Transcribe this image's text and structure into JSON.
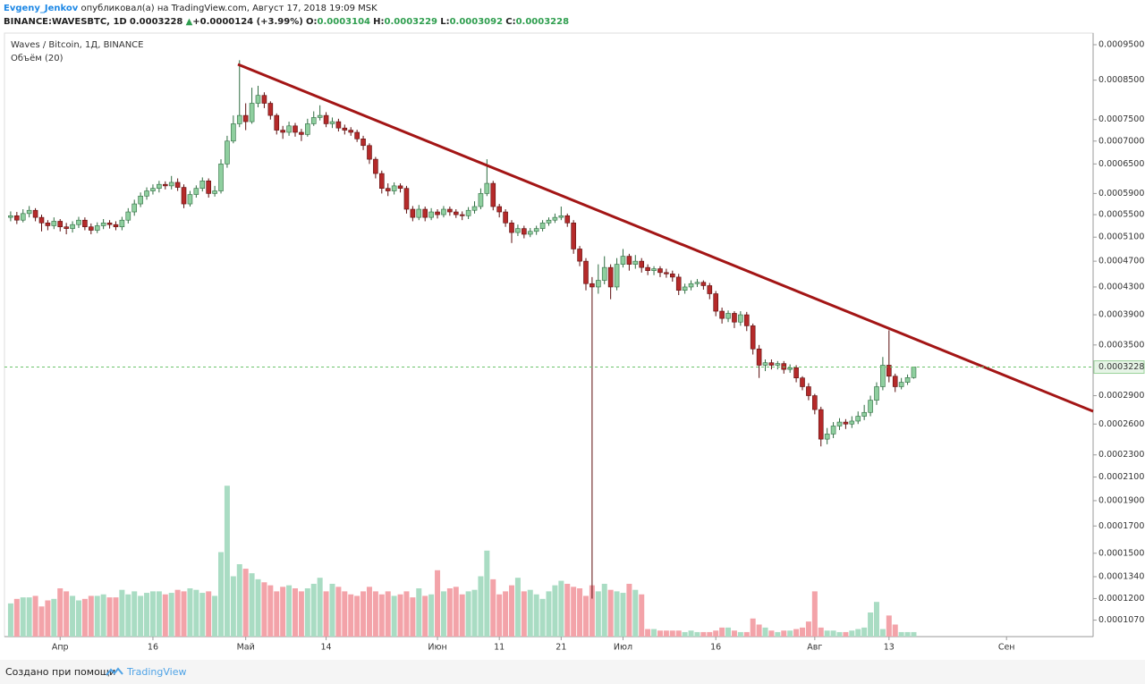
{
  "header": {
    "author": "Evgeny_Jenkov",
    "published": "опубликовал(а) на TradingView.com, Август 17, 2018 19:09 MSK",
    "symbol": "BINANCE:WAVESBTC, 1D",
    "change": "+0.0000124 (+3.99%)",
    "o_label": "O:",
    "h_label": "H:",
    "l_label": "L:",
    "c_label": "C:"
  },
  "footer": {
    "text": "Создано при помощи",
    "brand": "TradingView"
  },
  "chart_data": {
    "type": "candlestick",
    "title": "Waves / Bitcoin, 1Д, BINANCE",
    "volume_label": "Объём (20)",
    "log_scale": true,
    "grid": false,
    "up_color": "#8fcf9f",
    "down_color": "#b52a2a",
    "volume_up_color": "#a9dcc3",
    "volume_down_color": "#f3a3a9",
    "xlim": [
      "2018-03-23",
      "2018-09-15"
    ],
    "xticks": [
      {
        "value": "2018-04-01",
        "label": "Апр"
      },
      {
        "value": "2018-04-16",
        "label": "16"
      },
      {
        "value": "2018-05-01",
        "label": "Май"
      },
      {
        "value": "2018-05-14",
        "label": "14"
      },
      {
        "value": "2018-06-01",
        "label": "Июн"
      },
      {
        "value": "2018-06-11",
        "label": "11"
      },
      {
        "value": "2018-06-21",
        "label": "21"
      },
      {
        "value": "2018-07-01",
        "label": "Июл"
      },
      {
        "value": "2018-07-16",
        "label": "16"
      },
      {
        "value": "2018-08-01",
        "label": "Авг"
      },
      {
        "value": "2018-08-13",
        "label": "13"
      },
      {
        "value": "2018-09-01",
        "label": "Сен"
      }
    ],
    "ylim": [
      9.76e-05,
      0.000985
    ],
    "yticks": [
      {
        "value": 0.00095,
        "label": "0.0009500"
      },
      {
        "value": 0.00085,
        "label": "0.0008500"
      },
      {
        "value": 0.00075,
        "label": "0.0007500"
      },
      {
        "value": 0.0007,
        "label": "0.0007000"
      },
      {
        "value": 0.00065,
        "label": "0.0006500"
      },
      {
        "value": 0.00059,
        "label": "0.0005900"
      },
      {
        "value": 0.00055,
        "label": "0.0005500"
      },
      {
        "value": 0.00051,
        "label": "0.0005100"
      },
      {
        "value": 0.00047,
        "label": "0.0004700"
      },
      {
        "value": 0.00043,
        "label": "0.0004300"
      },
      {
        "value": 0.00039,
        "label": "0.0003900"
      },
      {
        "value": 0.00035,
        "label": "0.0003500"
      },
      {
        "value": 0.00029,
        "label": "0.0002900"
      },
      {
        "value": 0.00026,
        "label": "0.0002600"
      },
      {
        "value": 0.00023,
        "label": "0.0002300"
      },
      {
        "value": 0.00021,
        "label": "0.0002100"
      },
      {
        "value": 0.00019,
        "label": "0.0001900"
      },
      {
        "value": 0.00017,
        "label": "0.0001700"
      },
      {
        "value": 0.00015,
        "label": "0.0001500"
      },
      {
        "value": 0.000134,
        "label": "0.0001340"
      },
      {
        "value": 0.00012,
        "label": "0.0001200"
      },
      {
        "value": 0.000107,
        "label": "0.0001070"
      }
    ],
    "y2lim": [
      0,
      400
    ],
    "x": [
      "2018-03-24",
      "2018-03-25",
      "2018-03-26",
      "2018-03-27",
      "2018-03-28",
      "2018-03-29",
      "2018-03-30",
      "2018-03-31",
      "2018-04-01",
      "2018-04-02",
      "2018-04-03",
      "2018-04-04",
      "2018-04-05",
      "2018-04-06",
      "2018-04-07",
      "2018-04-08",
      "2018-04-09",
      "2018-04-10",
      "2018-04-11",
      "2018-04-12",
      "2018-04-13",
      "2018-04-14",
      "2018-04-15",
      "2018-04-16",
      "2018-04-17",
      "2018-04-18",
      "2018-04-19",
      "2018-04-20",
      "2018-04-21",
      "2018-04-22",
      "2018-04-23",
      "2018-04-24",
      "2018-04-25",
      "2018-04-26",
      "2018-04-27",
      "2018-04-28",
      "2018-04-29",
      "2018-04-30",
      "2018-05-01",
      "2018-05-02",
      "2018-05-03",
      "2018-05-04",
      "2018-05-05",
      "2018-05-06",
      "2018-05-07",
      "2018-05-08",
      "2018-05-09",
      "2018-05-10",
      "2018-05-11",
      "2018-05-12",
      "2018-05-13",
      "2018-05-14",
      "2018-05-15",
      "2018-05-16",
      "2018-05-17",
      "2018-05-18",
      "2018-05-19",
      "2018-05-20",
      "2018-05-21",
      "2018-05-22",
      "2018-05-23",
      "2018-05-24",
      "2018-05-25",
      "2018-05-26",
      "2018-05-27",
      "2018-05-28",
      "2018-05-29",
      "2018-05-30",
      "2018-05-31",
      "2018-06-01",
      "2018-06-02",
      "2018-06-03",
      "2018-06-04",
      "2018-06-05",
      "2018-06-06",
      "2018-06-07",
      "2018-06-08",
      "2018-06-09",
      "2018-06-10",
      "2018-06-11",
      "2018-06-12",
      "2018-06-13",
      "2018-06-14",
      "2018-06-15",
      "2018-06-16",
      "2018-06-17",
      "2018-06-18",
      "2018-06-19",
      "2018-06-20",
      "2018-06-21",
      "2018-06-22",
      "2018-06-23",
      "2018-06-24",
      "2018-06-25",
      "2018-06-26",
      "2018-06-27",
      "2018-06-28",
      "2018-06-29",
      "2018-06-30",
      "2018-07-01",
      "2018-07-02",
      "2018-07-03",
      "2018-07-04",
      "2018-07-05",
      "2018-07-06",
      "2018-07-07",
      "2018-07-08",
      "2018-07-09",
      "2018-07-10",
      "2018-07-11",
      "2018-07-12",
      "2018-07-13",
      "2018-07-14",
      "2018-07-15",
      "2018-07-16",
      "2018-07-17",
      "2018-07-18",
      "2018-07-19",
      "2018-07-20",
      "2018-07-21",
      "2018-07-22",
      "2018-07-23",
      "2018-07-24",
      "2018-07-25",
      "2018-07-26",
      "2018-07-27",
      "2018-07-28",
      "2018-07-29",
      "2018-07-30",
      "2018-07-31",
      "2018-08-01",
      "2018-08-02",
      "2018-08-03",
      "2018-08-04",
      "2018-08-05",
      "2018-08-06",
      "2018-08-07",
      "2018-08-08",
      "2018-08-09",
      "2018-08-10",
      "2018-08-11",
      "2018-08-12",
      "2018-08-13",
      "2018-08-14",
      "2018-08-15",
      "2018-08-16",
      "2018-08-17"
    ],
    "open": [
      0.000545,
      0.000548,
      0.00054,
      0.000552,
      0.000558,
      0.000545,
      0.000535,
      0.00053,
      0.000538,
      0.000528,
      0.000525,
      0.000532,
      0.00054,
      0.000528,
      0.000522,
      0.00053,
      0.000535,
      0.000532,
      0.000528,
      0.00054,
      0.000555,
      0.00057,
      0.000585,
      0.000595,
      0.0006,
      0.000608,
      0.000605,
      0.000612,
      0.000602,
      0.00057,
      0.000588,
      0.0006,
      0.000615,
      0.00059,
      0.000595,
      0.00065,
      0.0007,
      0.00074,
      0.00076,
      0.000745,
      0.00079,
      0.00081,
      0.00079,
      0.00076,
      0.000725,
      0.00072,
      0.000735,
      0.00072,
      0.000715,
      0.00074,
      0.000755,
      0.00076,
      0.00074,
      0.000745,
      0.00073,
      0.000725,
      0.00072,
      0.000705,
      0.00069,
      0.00066,
      0.00063,
      0.0006,
      0.000595,
      0.000605,
      0.0006,
      0.00056,
      0.000545,
      0.00056,
      0.000545,
      0.000555,
      0.00055,
      0.00056,
      0.000555,
      0.00055,
      0.000548,
      0.000558,
      0.000565,
      0.00059,
      0.00061,
      0.000565,
      0.000555,
      0.000535,
      0.000518,
      0.000525,
      0.000515,
      0.00052,
      0.000525,
      0.000535,
      0.00054,
      0.000545,
      0.000548,
      0.000535,
      0.00049,
      0.00047,
      0.000435,
      0.00043,
      0.00044,
      0.00046,
      0.00043,
      0.000465,
      0.000478,
      0.000465,
      0.00047,
      0.00046,
      0.000455,
      0.000458,
      0.000452,
      0.00045,
      0.000445,
      0.000425,
      0.00043,
      0.000435,
      0.000437,
      0.000432,
      0.00042,
      0.000395,
      0.000385,
      0.000392,
      0.00038,
      0.00039,
      0.000375,
      0.000345,
      0.000325,
      0.000328,
      0.000325,
      0.000327,
      0.00032,
      0.000322,
      0.00031,
      0.0003,
      0.00029,
      0.000275,
      0.000245,
      0.00025,
      0.000258,
      0.000262,
      0.00026,
      0.000263,
      0.000268,
      0.000272,
      0.000285,
      0.0003,
      0.000325,
      0.000312,
      0.0003,
      0.000305,
      0.0003104
    ],
    "high": [
      0.000556,
      0.000555,
      0.00056,
      0.000566,
      0.000562,
      0.00055,
      0.00054,
      0.000545,
      0.000542,
      0.000535,
      0.000538,
      0.000546,
      0.000545,
      0.000534,
      0.000536,
      0.000542,
      0.00054,
      0.000538,
      0.000546,
      0.000562,
      0.000578,
      0.000592,
      0.000602,
      0.000608,
      0.000615,
      0.000614,
      0.000625,
      0.00062,
      0.000608,
      0.000595,
      0.000606,
      0.000622,
      0.00062,
      0.000605,
      0.00066,
      0.000712,
      0.00076,
      0.000905,
      0.00079,
      0.00083,
      0.000835,
      0.000818,
      0.000795,
      0.000765,
      0.000735,
      0.000745,
      0.000742,
      0.000728,
      0.000752,
      0.00077,
      0.000785,
      0.000768,
      0.000755,
      0.000752,
      0.000738,
      0.000732,
      0.000726,
      0.000712,
      0.000695,
      0.000665,
      0.000636,
      0.00061,
      0.000612,
      0.00061,
      0.000605,
      0.000566,
      0.000568,
      0.000565,
      0.000562,
      0.00056,
      0.000566,
      0.000565,
      0.00056,
      0.000556,
      0.000564,
      0.000575,
      0.0006,
      0.00066,
      0.000615,
      0.00057,
      0.00056,
      0.00054,
      0.000532,
      0.00053,
      0.000526,
      0.00053,
      0.00054,
      0.000545,
      0.000552,
      0.000565,
      0.000552,
      0.00054,
      0.000495,
      0.000475,
      0.000445,
      0.000465,
      0.000478,
      0.000465,
      0.000475,
      0.00049,
      0.000482,
      0.00048,
      0.000475,
      0.000465,
      0.000462,
      0.000462,
      0.000458,
      0.000455,
      0.00045,
      0.000435,
      0.00044,
      0.000442,
      0.00044,
      0.000436,
      0.000424,
      0.0004,
      0.000396,
      0.000395,
      0.000395,
      0.000394,
      0.000378,
      0.00035,
      0.000332,
      0.000332,
      0.00033,
      0.00033,
      0.000326,
      0.000325,
      0.000312,
      0.000304,
      0.000292,
      0.000278,
      0.000256,
      0.000262,
      0.000266,
      0.000265,
      0.000268,
      0.000273,
      0.00028,
      0.00029,
      0.000305,
      0.000335,
      0.000369,
      0.000315,
      0.00031,
      0.000314,
      0.0003229
    ],
    "low": [
      0.000538,
      0.000533,
      0.000536,
      0.000545,
      0.000538,
      0.00052,
      0.000522,
      0.000524,
      0.00052,
      0.000515,
      0.000518,
      0.000526,
      0.000522,
      0.000515,
      0.000517,
      0.000524,
      0.000525,
      0.000522,
      0.000522,
      0.000534,
      0.000548,
      0.000564,
      0.000578,
      0.000588,
      0.000592,
      0.000598,
      0.000598,
      0.000595,
      0.000562,
      0.000565,
      0.000582,
      0.000594,
      0.000582,
      0.000584,
      0.00059,
      0.000642,
      0.000695,
      0.000732,
      0.000725,
      0.00074,
      0.00078,
      0.000778,
      0.00075,
      0.000715,
      0.000705,
      0.000712,
      0.00071,
      0.0007,
      0.00071,
      0.000735,
      0.000748,
      0.000732,
      0.00073,
      0.000722,
      0.000715,
      0.000712,
      0.000698,
      0.00068,
      0.00065,
      0.00062,
      0.00059,
      0.000585,
      0.000588,
      0.000592,
      0.000552,
      0.000538,
      0.00054,
      0.000538,
      0.00054,
      0.000543,
      0.000545,
      0.000548,
      0.000544,
      0.00054,
      0.000542,
      0.000552,
      0.00056,
      0.000585,
      0.000558,
      0.000545,
      0.000528,
      0.0005,
      0.000512,
      0.000508,
      0.00051,
      0.000514,
      0.00052,
      0.00053,
      0.000535,
      0.00054,
      0.000528,
      0.000482,
      0.000462,
      0.000425,
      0.00012,
      0.00042,
      0.000434,
      0.000412,
      0.000425,
      0.00046,
      0.000455,
      0.000458,
      0.000452,
      0.000448,
      0.000448,
      0.000445,
      0.000444,
      0.000438,
      0.000418,
      0.00042,
      0.000425,
      0.00043,
      0.000426,
      0.000412,
      0.000388,
      0.000378,
      0.00038,
      0.000372,
      0.000375,
      0.000368,
      0.000338,
      0.00031,
      0.000318,
      0.00032,
      0.00032,
      0.000315,
      0.000316,
      0.000305,
      0.000296,
      0.000285,
      0.00027,
      0.000238,
      0.00024,
      0.000246,
      0.000254,
      0.000255,
      0.000256,
      0.00026,
      0.000264,
      0.000268,
      0.00028,
      0.000296,
      0.000305,
      0.000294,
      0.000297,
      0.000302,
      0.0003092
    ],
    "close": [
      0.000548,
      0.00054,
      0.000552,
      0.000558,
      0.000545,
      0.000535,
      0.00053,
      0.000538,
      0.000528,
      0.000525,
      0.000532,
      0.00054,
      0.000528,
      0.000522,
      0.00053,
      0.000535,
      0.000532,
      0.000528,
      0.00054,
      0.000555,
      0.00057,
      0.000585,
      0.000595,
      0.0006,
      0.000608,
      0.000605,
      0.000612,
      0.000602,
      0.00057,
      0.000588,
      0.0006,
      0.000615,
      0.00059,
      0.000595,
      0.00065,
      0.0007,
      0.00074,
      0.00076,
      0.000745,
      0.00079,
      0.00081,
      0.00079,
      0.00076,
      0.000725,
      0.00072,
      0.000735,
      0.00072,
      0.000715,
      0.00074,
      0.000755,
      0.00076,
      0.00074,
      0.000745,
      0.00073,
      0.000725,
      0.00072,
      0.000705,
      0.00069,
      0.00066,
      0.00063,
      0.0006,
      0.000595,
      0.000605,
      0.0006,
      0.00056,
      0.000545,
      0.00056,
      0.000545,
      0.000555,
      0.00055,
      0.00056,
      0.000555,
      0.00055,
      0.000548,
      0.000558,
      0.000565,
      0.00059,
      0.00061,
      0.000565,
      0.000555,
      0.000535,
      0.000518,
      0.000525,
      0.000515,
      0.00052,
      0.000525,
      0.000535,
      0.00054,
      0.000545,
      0.000548,
      0.000535,
      0.00049,
      0.00047,
      0.000435,
      0.00043,
      0.00044,
      0.00046,
      0.00043,
      0.000465,
      0.000478,
      0.000465,
      0.00047,
      0.00046,
      0.000455,
      0.000458,
      0.000452,
      0.00045,
      0.000445,
      0.000425,
      0.00043,
      0.000435,
      0.000437,
      0.000432,
      0.00042,
      0.000395,
      0.000385,
      0.000392,
      0.00038,
      0.00039,
      0.000375,
      0.000345,
      0.000325,
      0.000328,
      0.000325,
      0.000327,
      0.00032,
      0.000322,
      0.00031,
      0.0003,
      0.00029,
      0.000275,
      0.000245,
      0.00025,
      0.000258,
      0.000262,
      0.00026,
      0.000263,
      0.000268,
      0.000272,
      0.000285,
      0.0003,
      0.000325,
      0.000312,
      0.0003,
      0.000305,
      0.0003104,
      0.0003228
    ],
    "volume": [
      22,
      25,
      26,
      26,
      27,
      20,
      24,
      25,
      32,
      30,
      27,
      24,
      25,
      27,
      27,
      28,
      26,
      26,
      31,
      28,
      30,
      27,
      29,
      30,
      30,
      28,
      29,
      31,
      30,
      32,
      31,
      29,
      30,
      27,
      56,
      100,
      40,
      48,
      45,
      42,
      38,
      36,
      34,
      30,
      33,
      34,
      32,
      30,
      32,
      35,
      39,
      30,
      35,
      33,
      30,
      28,
      27,
      30,
      33,
      30,
      28,
      30,
      27,
      28,
      30,
      26,
      32,
      27,
      28,
      44,
      30,
      32,
      33,
      28,
      30,
      31,
      40,
      57,
      38,
      28,
      30,
      34,
      39,
      30,
      31,
      28,
      25,
      30,
      34,
      37,
      35,
      33,
      32,
      27,
      34,
      30,
      35,
      31,
      30,
      29,
      35,
      31,
      28,
      5,
      5,
      4,
      4,
      4,
      4,
      3,
      4,
      3,
      3,
      3,
      4,
      6,
      6,
      4,
      3,
      3,
      12,
      8,
      6,
      4,
      3,
      4,
      4,
      5,
      6,
      10,
      30,
      6,
      4,
      4,
      3,
      3,
      4,
      5,
      6,
      16,
      23,
      5,
      14,
      8,
      3,
      3,
      3
    ]
  }
}
